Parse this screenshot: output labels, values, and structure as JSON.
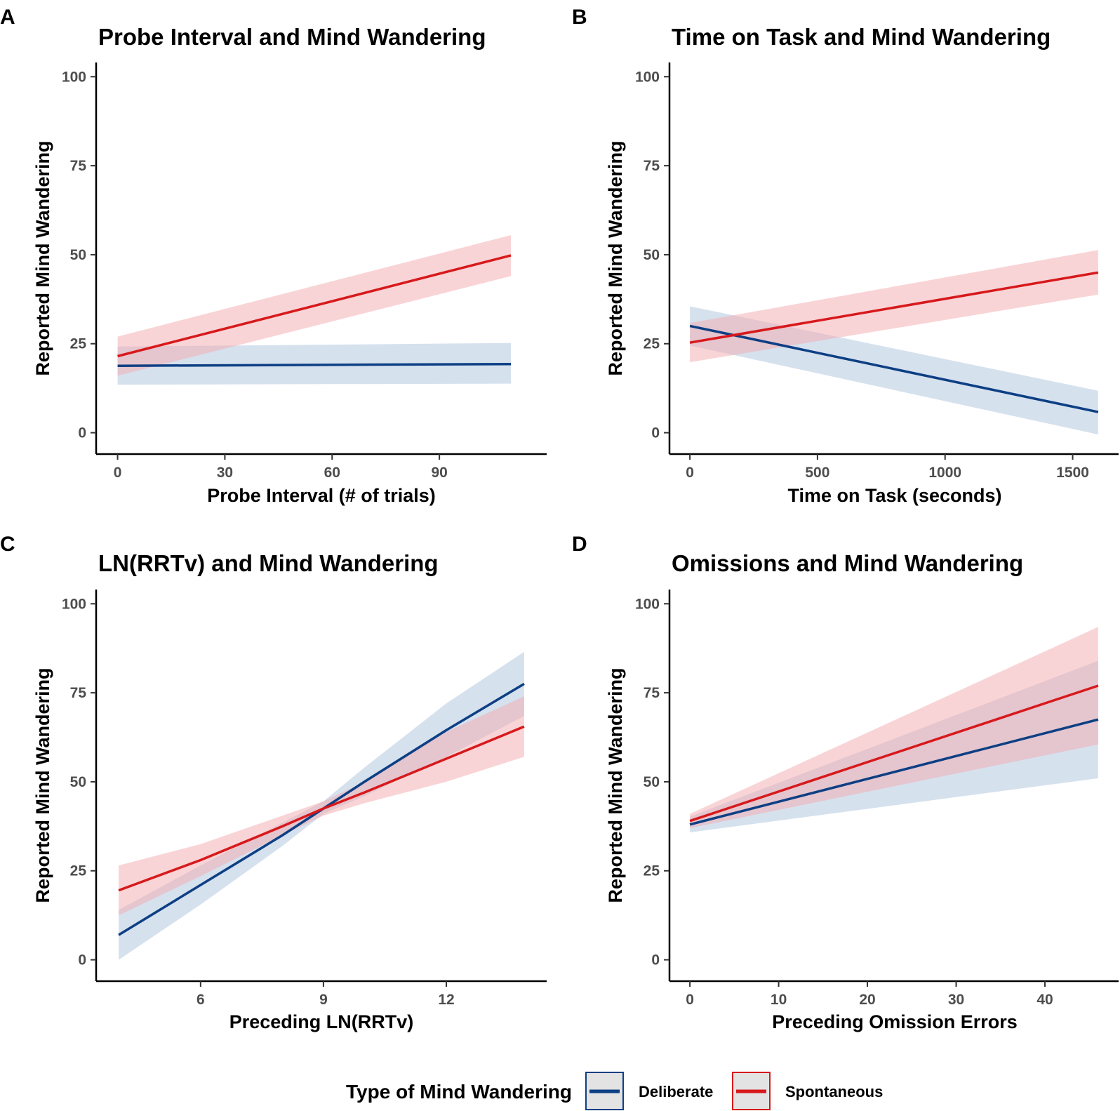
{
  "legend": {
    "title": "Type of Mind Wandering",
    "entries": [
      {
        "name": "Deliberate",
        "color": "#0d3f84",
        "band_color": "#aec3dd"
      },
      {
        "name": "Spontaneous",
        "color": "#d7191c",
        "band_color": "#f4aaae"
      }
    ]
  },
  "chart_data": [
    {
      "panel": "A",
      "type": "line",
      "title": "Probe Interval and Mind Wandering",
      "xlabel": "Probe Interval (# of trials)",
      "ylabel": "Reported Mind Wandering",
      "xlim": [
        -6,
        120
      ],
      "ylim": [
        -6,
        104
      ],
      "xticks": [
        0,
        30,
        60,
        90
      ],
      "yticks": [
        0,
        25,
        50,
        75,
        100
      ],
      "grid": false,
      "series": [
        {
          "name": "Deliberate",
          "x": [
            0,
            110
          ],
          "y": [
            18.8,
            19.3
          ],
          "lower": [
            13.5,
            13.8
          ],
          "upper": [
            24.2,
            25.2
          ]
        },
        {
          "name": "Spontaneous",
          "x": [
            0,
            110
          ],
          "y": [
            21.5,
            49.8
          ],
          "lower": [
            16.0,
            44.0
          ],
          "upper": [
            27.0,
            55.5
          ]
        }
      ]
    },
    {
      "panel": "B",
      "type": "line",
      "title": "Time on Task and Mind Wandering",
      "xlabel": "Time on Task (seconds)",
      "ylabel": "Reported Mind Wandering",
      "xlim": [
        -80,
        1680
      ],
      "ylim": [
        -6,
        104
      ],
      "xticks": [
        0,
        500,
        1000,
        1500
      ],
      "yticks": [
        0,
        25,
        50,
        75,
        100
      ],
      "grid": false,
      "series": [
        {
          "name": "Deliberate",
          "x": [
            0,
            1600
          ],
          "y": [
            30.0,
            5.8
          ],
          "lower": [
            24.5,
            -0.5
          ],
          "upper": [
            35.5,
            11.8
          ]
        },
        {
          "name": "Spontaneous",
          "x": [
            0,
            1600
          ],
          "y": [
            25.3,
            45.0
          ],
          "lower": [
            19.8,
            38.8
          ],
          "upper": [
            30.8,
            51.3
          ]
        }
      ]
    },
    {
      "panel": "C",
      "type": "line",
      "title": "LN(RRTv) and Mind Wandering",
      "xlabel": "Preceding LN(RRTv)",
      "ylabel": "Reported Mind Wandering",
      "xlim": [
        3.45,
        14.45
      ],
      "ylim": [
        -6,
        104
      ],
      "xticks": [
        6,
        9,
        12
      ],
      "yticks": [
        0,
        25,
        50,
        75,
        100
      ],
      "grid": false,
      "series": [
        {
          "name": "Deliberate",
          "x": [
            4.0,
            6.0,
            8.0,
            9.0,
            10.0,
            12.0,
            13.9
          ],
          "y": [
            7.0,
            21.0,
            35.0,
            42.5,
            50.0,
            64.5,
            77.5
          ],
          "lower": [
            0.0,
            15.5,
            32.0,
            41.0,
            46.0,
            57.0,
            68.5
          ],
          "upper": [
            14.0,
            26.5,
            38.5,
            44.5,
            54.0,
            72.0,
            86.5
          ]
        },
        {
          "name": "Spontaneous",
          "x": [
            4.0,
            6.0,
            8.0,
            9.0,
            10.0,
            12.0,
            13.9
          ],
          "y": [
            19.5,
            28.0,
            37.5,
            42.5,
            47.0,
            56.5,
            65.5
          ],
          "lower": [
            12.5,
            23.5,
            35.0,
            40.5,
            44.0,
            50.0,
            57.0
          ],
          "upper": [
            26.5,
            32.5,
            40.5,
            44.5,
            50.0,
            64.0,
            74.0
          ]
        }
      ]
    },
    {
      "panel": "D",
      "type": "line",
      "title": "Omissions and Mind Wandering",
      "xlabel": "Preceding Omission Errors",
      "ylabel": "Reported Mind Wandering",
      "xlim": [
        -2.3,
        48.3
      ],
      "ylim": [
        -6,
        104
      ],
      "xticks": [
        0,
        10,
        20,
        30,
        40
      ],
      "yticks": [
        0,
        25,
        50,
        75,
        100
      ],
      "grid": false,
      "series": [
        {
          "name": "Deliberate",
          "x": [
            0,
            46
          ],
          "y": [
            38.0,
            67.5
          ],
          "lower": [
            35.8,
            51.0
          ],
          "upper": [
            40.2,
            84.0
          ]
        },
        {
          "name": "Spontaneous",
          "x": [
            0,
            46
          ],
          "y": [
            39.0,
            77.0
          ],
          "lower": [
            37.0,
            60.5
          ],
          "upper": [
            41.0,
            93.5
          ]
        }
      ]
    }
  ]
}
